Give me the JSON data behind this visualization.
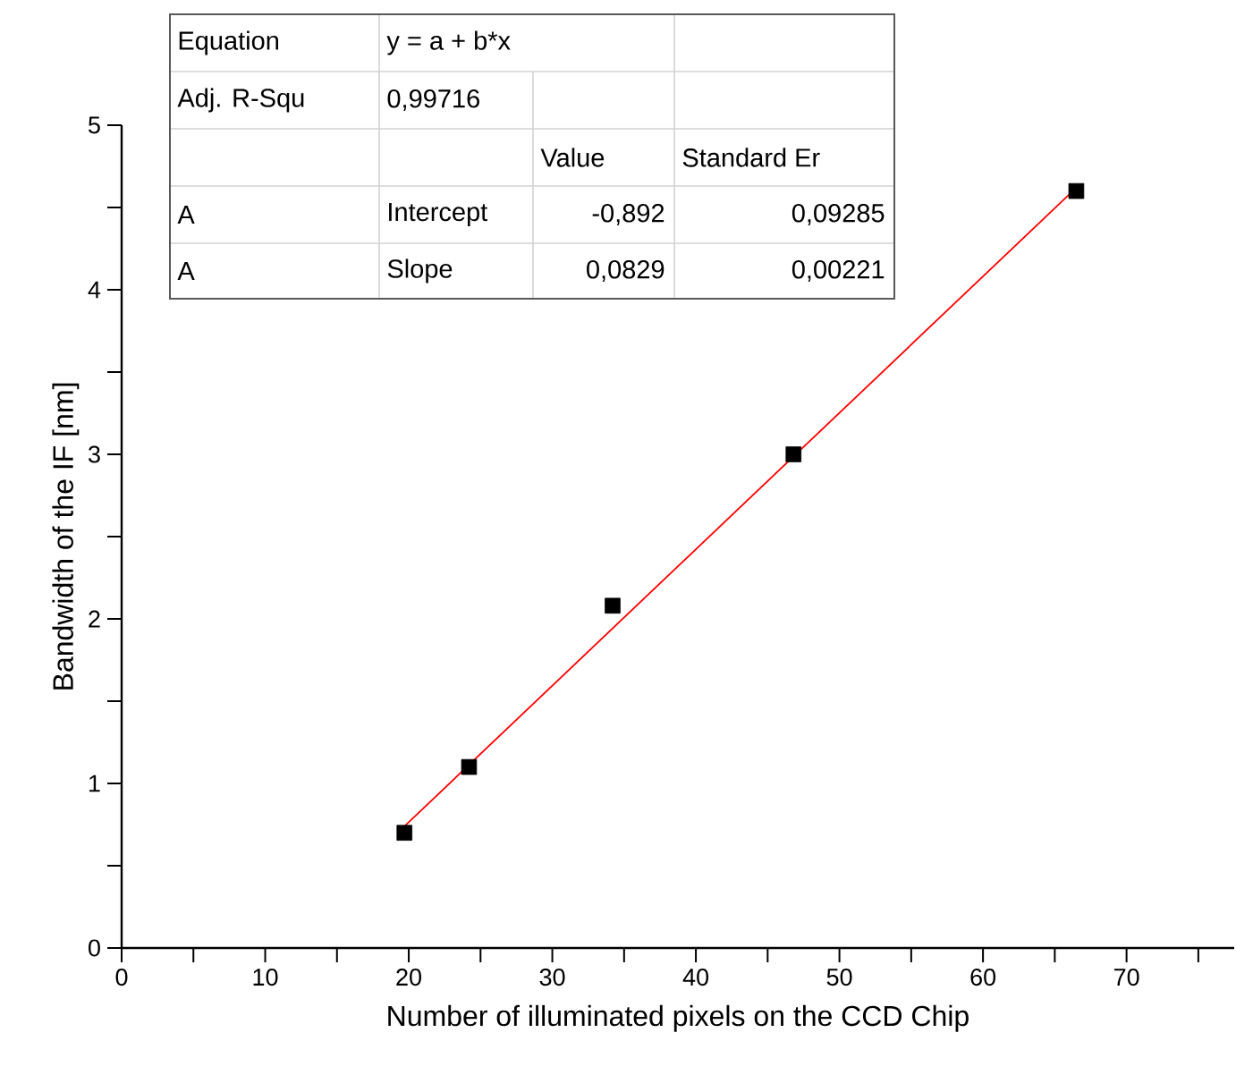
{
  "chart_data": {
    "type": "scatter",
    "xlabel": "Number of illuminated pixels on the CCD Chip",
    "ylabel": "Bandwidth of the IF [nm]",
    "xlim": [
      0,
      77.5
    ],
    "xticks": [
      0,
      {
        "value": 5,
        "label": null
      },
      10,
      {
        "value": 15,
        "label": null
      },
      20,
      {
        "value": 25,
        "label": null
      },
      30,
      {
        "value": 35,
        "label": null
      },
      40,
      {
        "value": 45,
        "label": null
      },
      50,
      {
        "value": 55,
        "label": null
      },
      60,
      {
        "value": 65,
        "label": null
      },
      70,
      {
        "value": 75,
        "label": null
      }
    ],
    "ylim": [
      0,
      5
    ],
    "yticks": [
      0,
      {
        "value": 0.5,
        "label": null
      },
      1,
      {
        "value": 1.5,
        "label": null
      },
      2,
      {
        "value": 2.5,
        "label": null
      },
      3,
      {
        "value": 3.5,
        "label": null
      },
      4,
      {
        "value": 4.5,
        "label": null
      },
      5
    ],
    "grid": false,
    "series": [
      {
        "marker": "square",
        "color": "#000000",
        "x": [
          19.7,
          24.2,
          34.2,
          46.8,
          66.5
        ],
        "values": [
          0.7,
          1.1,
          2.08,
          3.0,
          4.6
        ]
      },
      {
        "type": "line",
        "marker": "none",
        "color": "#ff0000",
        "x": [
          19.7,
          66.5
        ],
        "values": [
          0.74,
          4.62
        ]
      }
    ],
    "annotations": [
      "Equation",
      "y = a + b*x",
      "Adj. R-Squ",
      "0,99716",
      "Value",
      "Standard Er",
      "A",
      "Intercept",
      "-0,892",
      "0,09285",
      "A",
      "Slope",
      "0,0829",
      "0,00221"
    ]
  }
}
